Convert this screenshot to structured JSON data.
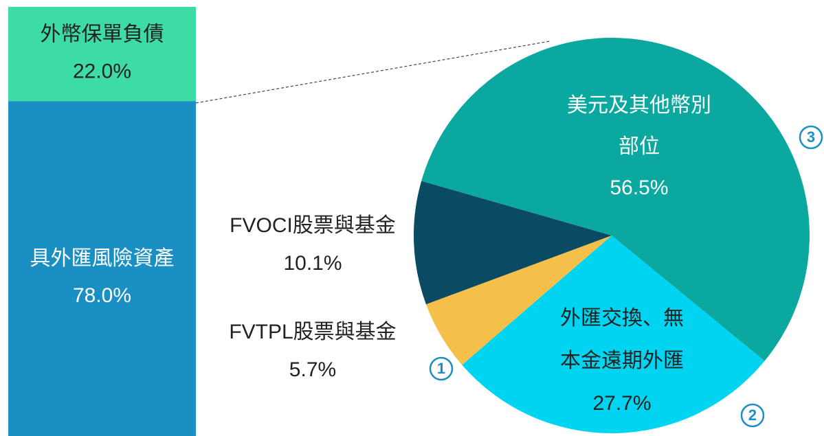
{
  "chart_data": {
    "type": "bar-of-pie",
    "bar": {
      "categories": [
        [
          "外幣保單負債"
        ],
        [
          "具外匯風險資產"
        ]
      ],
      "values": [
        22.0,
        78.0
      ],
      "value_labels": [
        "22.0%",
        "78.0%"
      ],
      "colors": [
        "#3ddba5",
        "#1a8fc4"
      ]
    },
    "pie": {
      "categories": [
        [
          "美元及其他幣別",
          "部位"
        ],
        [
          "外匯交換、無",
          "本金遠期外匯"
        ],
        [
          "FVTPL股票與基金"
        ],
        [
          "FVOCI股票與基金"
        ]
      ],
      "values": [
        56.5,
        27.7,
        5.7,
        10.1
      ],
      "value_labels": [
        "56.5%",
        "27.7%",
        "5.7%",
        "10.1%"
      ],
      "colors": [
        "#0aa89e",
        "#00d4f0",
        "#f5c04a",
        "#0b4a63"
      ],
      "annotations": [
        "3",
        "2",
        "1",
        null
      ]
    }
  }
}
